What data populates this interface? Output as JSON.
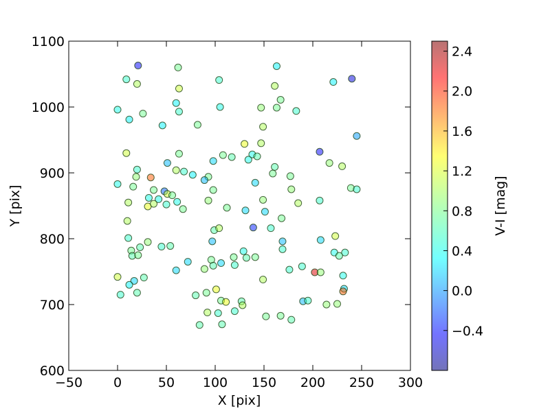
{
  "chart_data": {
    "type": "scatter",
    "xlabel": "X [pix]",
    "ylabel": "Y [pix]",
    "xlim": [
      -50,
      300
    ],
    "ylim": [
      600,
      1100
    ],
    "xticks": [
      "−50",
      "0",
      "50",
      "100",
      "150",
      "200",
      "250",
      "300"
    ],
    "yticks": [
      "600",
      "700",
      "800",
      "900",
      "1000",
      "1100"
    ],
    "colorbar": {
      "label": "V-I [mag]",
      "range": [
        -0.8,
        2.5
      ],
      "colormap": "jet",
      "ticks": [
        "−0.4",
        "0.0",
        "0.4",
        "0.8",
        "1.2",
        "1.6",
        "2.0",
        "2.4"
      ]
    },
    "marker_alpha": 0.5,
    "points": [
      {
        "x": 21,
        "y": 1063,
        "c": -0.4
      },
      {
        "x": 62,
        "y": 1060,
        "c": 0.8
      },
      {
        "x": 9,
        "y": 1042,
        "c": 0.6
      },
      {
        "x": 20,
        "y": 1035,
        "c": 1.0
      },
      {
        "x": 104,
        "y": 1041,
        "c": 0.6
      },
      {
        "x": 163,
        "y": 1062,
        "c": 0.4
      },
      {
        "x": 221,
        "y": 1038,
        "c": 0.4
      },
      {
        "x": 240,
        "y": 1043,
        "c": -0.5
      },
      {
        "x": 63,
        "y": 1028,
        "c": 1.1
      },
      {
        "x": 161,
        "y": 1032,
        "c": 1.0
      },
      {
        "x": 0,
        "y": 996,
        "c": 0.5
      },
      {
        "x": 60,
        "y": 1006,
        "c": 0.4
      },
      {
        "x": 63,
        "y": 993,
        "c": 0.6
      },
      {
        "x": 26,
        "y": 990,
        "c": 0.8
      },
      {
        "x": 105,
        "y": 1000,
        "c": 0.5
      },
      {
        "x": 147,
        "y": 999,
        "c": 0.9
      },
      {
        "x": 163,
        "y": 999,
        "c": 0.8
      },
      {
        "x": 167,
        "y": 1011,
        "c": 0.8
      },
      {
        "x": 183,
        "y": 994,
        "c": 0.6
      },
      {
        "x": 12,
        "y": 981,
        "c": 0.4
      },
      {
        "x": 46,
        "y": 972,
        "c": 0.4
      },
      {
        "x": 82,
        "y": 973,
        "c": 0.8
      },
      {
        "x": 149,
        "y": 970,
        "c": 1.0
      },
      {
        "x": 245,
        "y": 956,
        "c": 0.1
      },
      {
        "x": 130,
        "y": 944,
        "c": 1.2
      },
      {
        "x": 147,
        "y": 945,
        "c": 1.0
      },
      {
        "x": 9,
        "y": 930,
        "c": 1.1
      },
      {
        "x": 63,
        "y": 929,
        "c": 0.8
      },
      {
        "x": 108,
        "y": 927,
        "c": 0.8
      },
      {
        "x": 117,
        "y": 924,
        "c": 0.7
      },
      {
        "x": 138,
        "y": 928,
        "c": 0.5
      },
      {
        "x": 143,
        "y": 925,
        "c": 0.7
      },
      {
        "x": 207,
        "y": 932,
        "c": -0.4
      },
      {
        "x": 51,
        "y": 915,
        "c": 0.2
      },
      {
        "x": 98,
        "y": 918,
        "c": 0.3
      },
      {
        "x": 134,
        "y": 920,
        "c": 0.5
      },
      {
        "x": 217,
        "y": 915,
        "c": 0.9
      },
      {
        "x": 161,
        "y": 909,
        "c": 0.7
      },
      {
        "x": 230,
        "y": 910,
        "c": 1.0
      },
      {
        "x": 20,
        "y": 905,
        "c": 0.6
      },
      {
        "x": 60,
        "y": 904,
        "c": 1.0
      },
      {
        "x": 68,
        "y": 902,
        "c": 0.6
      },
      {
        "x": 77,
        "y": 897,
        "c": 0.4
      },
      {
        "x": 159,
        "y": 899,
        "c": 0.8
      },
      {
        "x": 19,
        "y": 894,
        "c": 0.9
      },
      {
        "x": 93,
        "y": 894,
        "c": 0.8
      },
      {
        "x": 89,
        "y": 889,
        "c": 0.2
      },
      {
        "x": 177,
        "y": 895,
        "c": 0.8
      },
      {
        "x": 0,
        "y": 883,
        "c": 0.5
      },
      {
        "x": 34,
        "y": 893,
        "c": 1.8
      },
      {
        "x": 141,
        "y": 885,
        "c": 0.3
      },
      {
        "x": 16,
        "y": 879,
        "c": 0.8
      },
      {
        "x": 37,
        "y": 874,
        "c": 0.8
      },
      {
        "x": 48,
        "y": 872,
        "c": -0.1
      },
      {
        "x": 51,
        "y": 868,
        "c": 1.1
      },
      {
        "x": 56,
        "y": 866,
        "c": 0.8
      },
      {
        "x": 98,
        "y": 874,
        "c": 0.8
      },
      {
        "x": 178,
        "y": 875,
        "c": 0.9
      },
      {
        "x": 239,
        "y": 877,
        "c": 0.8
      },
      {
        "x": 245,
        "y": 875,
        "c": 0.6
      },
      {
        "x": 32,
        "y": 862,
        "c": 0.5
      },
      {
        "x": 42,
        "y": 860,
        "c": 0.5
      },
      {
        "x": 11,
        "y": 855,
        "c": 1.0
      },
      {
        "x": 61,
        "y": 856,
        "c": 0.5
      },
      {
        "x": 93,
        "y": 858,
        "c": 0.9
      },
      {
        "x": 149,
        "y": 859,
        "c": 0.9
      },
      {
        "x": 185,
        "y": 854,
        "c": 1.0
      },
      {
        "x": 207,
        "y": 858,
        "c": 0.6
      },
      {
        "x": 31,
        "y": 849,
        "c": 1.2
      },
      {
        "x": 37,
        "y": 853,
        "c": 1.0
      },
      {
        "x": 50,
        "y": 852,
        "c": 0.6
      },
      {
        "x": 67,
        "y": 845,
        "c": 0.8
      },
      {
        "x": 112,
        "y": 847,
        "c": 0.8
      },
      {
        "x": 131,
        "y": 843,
        "c": 0.3
      },
      {
        "x": 151,
        "y": 841,
        "c": 0.3
      },
      {
        "x": 10,
        "y": 827,
        "c": 1.0
      },
      {
        "x": 168,
        "y": 831,
        "c": 0.8
      },
      {
        "x": 99,
        "y": 813,
        "c": 0.7
      },
      {
        "x": 104,
        "y": 816,
        "c": 1.0
      },
      {
        "x": 139,
        "y": 817,
        "c": -0.3
      },
      {
        "x": 157,
        "y": 816,
        "c": 0.6
      },
      {
        "x": 223,
        "y": 804,
        "c": 1.1
      },
      {
        "x": 11,
        "y": 801,
        "c": 0.6
      },
      {
        "x": 97,
        "y": 796,
        "c": 0.2
      },
      {
        "x": 169,
        "y": 796,
        "c": 0.2
      },
      {
        "x": 208,
        "y": 798,
        "c": 0.3
      },
      {
        "x": 31,
        "y": 795,
        "c": 0.9
      },
      {
        "x": 23,
        "y": 787,
        "c": 0.7
      },
      {
        "x": 45,
        "y": 788,
        "c": 0.6
      },
      {
        "x": 54,
        "y": 789,
        "c": 0.7
      },
      {
        "x": 14,
        "y": 782,
        "c": 0.8
      },
      {
        "x": 129,
        "y": 781,
        "c": 0.5
      },
      {
        "x": 169,
        "y": 784,
        "c": 0.6
      },
      {
        "x": 222,
        "y": 779,
        "c": 0.5
      },
      {
        "x": 233,
        "y": 779,
        "c": 0.6
      },
      {
        "x": 15,
        "y": 774,
        "c": 0.7
      },
      {
        "x": 21,
        "y": 775,
        "c": 0.8
      },
      {
        "x": 119,
        "y": 772,
        "c": 0.8
      },
      {
        "x": 132,
        "y": 771,
        "c": 0.7
      },
      {
        "x": 141,
        "y": 772,
        "c": 0.8
      },
      {
        "x": 227,
        "y": 774,
        "c": 0.7
      },
      {
        "x": 72,
        "y": 765,
        "c": 0.3
      },
      {
        "x": 96,
        "y": 768,
        "c": 0.8
      },
      {
        "x": 98,
        "y": 759,
        "c": 0.7
      },
      {
        "x": 106,
        "y": 763,
        "c": 0.3
      },
      {
        "x": 120,
        "y": 760,
        "c": 0.6
      },
      {
        "x": 189,
        "y": 758,
        "c": 0.6
      },
      {
        "x": 60,
        "y": 752,
        "c": 0.3
      },
      {
        "x": 89,
        "y": 754,
        "c": 0.9
      },
      {
        "x": 176,
        "y": 753,
        "c": 0.6
      },
      {
        "x": 202,
        "y": 749,
        "c": 2.2
      },
      {
        "x": 208,
        "y": 749,
        "c": 0.9
      },
      {
        "x": 0,
        "y": 742,
        "c": 1.1
      },
      {
        "x": 27,
        "y": 741,
        "c": 0.7
      },
      {
        "x": 17,
        "y": 736,
        "c": 0.3
      },
      {
        "x": 12,
        "y": 730,
        "c": 0.4
      },
      {
        "x": 149,
        "y": 738,
        "c": 1.0
      },
      {
        "x": 231,
        "y": 744,
        "c": 0.5
      },
      {
        "x": 101,
        "y": 723,
        "c": 1.2
      },
      {
        "x": 232,
        "y": 724,
        "c": 0.3
      },
      {
        "x": 231,
        "y": 720,
        "c": 1.8
      },
      {
        "x": 20,
        "y": 718,
        "c": 0.7
      },
      {
        "x": 91,
        "y": 718,
        "c": 0.8
      },
      {
        "x": 3,
        "y": 715,
        "c": 0.6
      },
      {
        "x": 80,
        "y": 714,
        "c": 0.7
      },
      {
        "x": 106,
        "y": 706,
        "c": 0.8
      },
      {
        "x": 111,
        "y": 704,
        "c": 1.2
      },
      {
        "x": 127,
        "y": 705,
        "c": 0.7
      },
      {
        "x": 190,
        "y": 705,
        "c": 0.2
      },
      {
        "x": 195,
        "y": 706,
        "c": 0.6
      },
      {
        "x": 214,
        "y": 700,
        "c": 0.9
      },
      {
        "x": 225,
        "y": 701,
        "c": 0.9
      },
      {
        "x": 128,
        "y": 699,
        "c": 1.0
      },
      {
        "x": 92,
        "y": 688,
        "c": 1.0
      },
      {
        "x": 103,
        "y": 687,
        "c": 0.6
      },
      {
        "x": 120,
        "y": 690,
        "c": 0.6
      },
      {
        "x": 152,
        "y": 682,
        "c": 0.8
      },
      {
        "x": 167,
        "y": 683,
        "c": 0.8
      },
      {
        "x": 178,
        "y": 677,
        "c": 0.7
      },
      {
        "x": 84,
        "y": 669,
        "c": 0.7
      },
      {
        "x": 107,
        "y": 670,
        "c": 0.7
      }
    ]
  }
}
